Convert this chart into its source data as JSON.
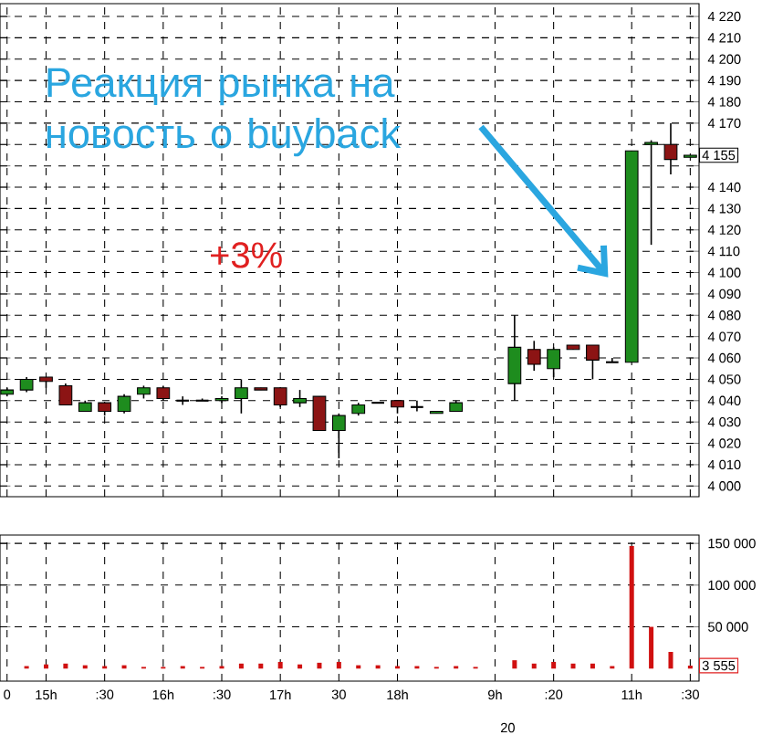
{
  "chart_data": [
    {
      "type": "candlestick",
      "categories": [
        null,
        null,
        null,
        null,
        null,
        null,
        null,
        null,
        null,
        null,
        null,
        null,
        null,
        null,
        null,
        null,
        null,
        null,
        null,
        null,
        null,
        null,
        null,
        null,
        null,
        null,
        null,
        null,
        null,
        null,
        null,
        null,
        null,
        null,
        null,
        null
      ],
      "ohlc": [
        [
          4043,
          4046,
          4042,
          4045
        ],
        [
          4045,
          4051,
          4044,
          4050
        ],
        [
          4051,
          4051,
          4046,
          4049
        ],
        [
          4047,
          4048,
          4038,
          4038
        ],
        [
          4035,
          4040,
          4035,
          4039
        ],
        [
          4039,
          4039,
          4033,
          4035
        ],
        [
          4035,
          4043,
          4034,
          4042
        ],
        [
          4043,
          4047,
          4041,
          4046
        ],
        [
          4046,
          4047,
          4040,
          4041
        ],
        [
          4040,
          4042,
          4038,
          4040
        ],
        [
          4040,
          4041,
          4040,
          4040
        ],
        [
          4040,
          4042,
          4039,
          4041
        ],
        [
          4041,
          4050,
          4034,
          4046
        ],
        [
          4046,
          4046,
          4045,
          4045
        ],
        [
          4046,
          4046,
          4037,
          4038
        ],
        [
          4039,
          4045,
          4037,
          4041
        ],
        [
          4042,
          4042,
          4026,
          4026
        ],
        [
          4026,
          4034,
          4013,
          4033
        ],
        [
          4034,
          4039,
          4033,
          4038
        ],
        [
          4039,
          4039,
          4039,
          4039
        ],
        [
          4040,
          4040,
          4034,
          4037
        ],
        [
          4037,
          4040,
          4035,
          4037
        ],
        [
          4034,
          4035,
          4034,
          4035
        ],
        [
          4035,
          4040,
          4035,
          4039
        ],
        null,
        null,
        [
          4048,
          4080,
          4040,
          4065
        ],
        [
          4064,
          4068,
          4054,
          4057
        ],
        [
          4055,
          4065,
          4051,
          4064
        ],
        [
          4066,
          4066,
          4064,
          4064
        ],
        [
          4066,
          4066,
          4050,
          4059
        ],
        [
          4058,
          4060,
          4058,
          4058
        ],
        [
          4058,
          4157,
          4058,
          4157
        ],
        [
          4160,
          4162,
          4113,
          4161
        ],
        [
          4160,
          4170,
          4146,
          4153
        ],
        [
          4154,
          4155,
          4154,
          4155
        ]
      ],
      "colors": [
        "#1e8c1e",
        "#1e8c1e",
        "#8c1414",
        "#8c1414",
        "#1e8c1e",
        "#8c1414",
        "#1e8c1e",
        "#1e8c1e",
        "#8c1414",
        "#000000",
        "#000000",
        "#1e8c1e",
        "#1e8c1e",
        "#8c1414",
        "#8c1414",
        "#1e8c1e",
        "#8c1414",
        "#1e8c1e",
        "#1e8c1e",
        "#000000",
        "#8c1414",
        "#000000",
        "#1e8c1e",
        "#1e8c1e",
        null,
        null,
        "#1e8c1e",
        "#8c1414",
        "#1e8c1e",
        "#8c1414",
        "#8c1414",
        "#000000",
        "#1e8c1e",
        "#1e8c1e",
        "#8c1414",
        "#1e8c1e"
      ],
      "ylim": [
        3995,
        4226
      ],
      "yticks": [
        {
          "value": 4000,
          "label": "4 000"
        },
        {
          "value": 4010,
          "label": "4 010"
        },
        {
          "value": 4020,
          "label": "4 020"
        },
        {
          "value": 4030,
          "label": "4 030"
        },
        {
          "value": 4040,
          "label": "4 040"
        },
        {
          "value": 4050,
          "label": "4 050"
        },
        {
          "value": 4060,
          "label": "4 060"
        },
        {
          "value": 4070,
          "label": "4 070"
        },
        {
          "value": 4080,
          "label": "4 080"
        },
        {
          "value": 4090,
          "label": "4 090"
        },
        {
          "value": 4100,
          "label": "4 100"
        },
        {
          "value": 4110,
          "label": "4 110"
        },
        {
          "value": 4120,
          "label": "4 120"
        },
        {
          "value": 4130,
          "label": "4 130"
        },
        {
          "value": 4140,
          "label": "4 140"
        },
        {
          "value": 4150,
          "label": null
        },
        {
          "value": 4160,
          "label": null
        },
        {
          "value": 4170,
          "label": "4 170"
        },
        {
          "value": 4180,
          "label": "4 180"
        },
        {
          "value": 4190,
          "label": "4 190"
        },
        {
          "value": 4200,
          "label": "4 200"
        },
        {
          "value": 4210,
          "label": "4 210"
        },
        {
          "value": 4220,
          "label": "4 220"
        }
      ],
      "grid": true,
      "annotations": [
        "Реакция рынка на новость о buyback",
        "+3%",
        {
          "text": "4 155",
          "y": 4155
        }
      ]
    },
    {
      "type": "bar",
      "categories": [
        "0",
        null,
        "15h",
        null,
        null,
        ":30",
        null,
        null,
        "16h",
        null,
        null,
        ":30",
        null,
        null,
        "17h",
        null,
        null,
        "30",
        null,
        null,
        "18h",
        null,
        null,
        null,
        null,
        "9h",
        null,
        null,
        ":20",
        null,
        null,
        null,
        "11h",
        null,
        null,
        ":30"
      ],
      "values": [
        null,
        3000,
        5000,
        6000,
        4000,
        3000,
        4000,
        2000,
        2000,
        3000,
        2000,
        3000,
        6000,
        6000,
        8000,
        5000,
        7000,
        8000,
        4000,
        4000,
        3000,
        3000,
        2000,
        3000,
        2000,
        null,
        10000,
        6000,
        8000,
        6000,
        6000,
        3000,
        147000,
        50000,
        20000,
        3555
      ],
      "color": "#d01010",
      "ylim": [
        -15000,
        160000
      ],
      "yticks": [
        {
          "value": 50000,
          "label": "50 000"
        },
        {
          "value": 100000,
          "label": "100 000"
        },
        {
          "value": 150000,
          "label": "150 000"
        }
      ],
      "grid": true,
      "annotations": [
        {
          "text": "3 555",
          "y": 3555
        },
        "20"
      ]
    }
  ]
}
